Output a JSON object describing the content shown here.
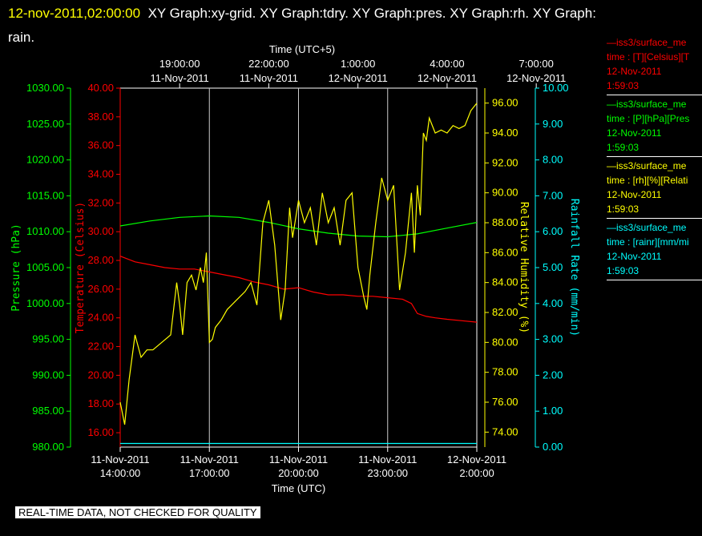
{
  "header": {
    "datetime": "12-nov-2011,02:00:00",
    "graphs": "XY Graph:xy-grid.  XY Graph:tdry.  XY Graph:pres.  XY Graph:rh.  XY Graph:",
    "graphs_cont": "rain."
  },
  "footer": "REAL-TIME DATA, NOT CHECKED FOR QUALITY",
  "legend": [
    {
      "title": "—iss3/surface_me",
      "lines": [
        "time : [T][Celsius][T",
        "12-Nov-2011",
        "1:59:03"
      ],
      "color": "#ff0000"
    },
    {
      "title": "—iss3/surface_me",
      "lines": [
        "time : [P][hPa][Pres",
        "12-Nov-2011",
        "1:59:03"
      ],
      "color": "#00ff00"
    },
    {
      "title": "—iss3/surface_me",
      "lines": [
        "time : [rh][%][Relati",
        "12-Nov-2011",
        "1:59:03"
      ],
      "color": "#ffff00"
    },
    {
      "title": "—iss3/surface_me",
      "lines": [
        "time : [rainr][mm/mi",
        "12-Nov-2011",
        "1:59:03"
      ],
      "color": "#00ffff"
    }
  ],
  "chart_data": {
    "type": "line",
    "x_axis_bottom": {
      "label": "Time (UTC)",
      "ticks": [
        {
          "line1": "11-Nov-2011",
          "line2": "14:00:00"
        },
        {
          "line1": "11-Nov-2011",
          "line2": "17:00:00"
        },
        {
          "line1": "11-Nov-2011",
          "line2": "20:00:00"
        },
        {
          "line1": "11-Nov-2011",
          "line2": "23:00:00"
        },
        {
          "line1": "12-Nov-2011",
          "line2": "2:00:00"
        }
      ],
      "range": [
        "2011-11-11 14:00",
        "2011-11-12 02:00"
      ]
    },
    "x_axis_top": {
      "label": "Time (UTC+5)",
      "ticks": [
        {
          "line1": "19:00:00",
          "line2": "11-Nov-2011"
        },
        {
          "line1": "22:00:00",
          "line2": "11-Nov-2011"
        },
        {
          "line1": "1:00:00",
          "line2": "12-Nov-2011"
        },
        {
          "line1": "4:00:00",
          "line2": "12-Nov-2011"
        },
        {
          "line1": "7:00:00",
          "line2": "12-Nov-2011"
        }
      ]
    },
    "axes": {
      "pressure": {
        "label": "Pressure (hPa)",
        "range": [
          980,
          1030
        ],
        "ticks": [
          "980.00",
          "985.00",
          "990.00",
          "995.00",
          "1000.00",
          "1005.00",
          "1010.00",
          "1015.00",
          "1020.00",
          "1025.00",
          "1030.00"
        ],
        "color": "#00ff00"
      },
      "temperature": {
        "label": "Temperature (Celsius)",
        "range": [
          15,
          40
        ],
        "ticks": [
          "16.00",
          "18.00",
          "20.00",
          "22.00",
          "24.00",
          "26.00",
          "28.00",
          "30.00",
          "32.00",
          "34.00",
          "36.00",
          "38.00",
          "40.00"
        ],
        "color": "#ff0000"
      },
      "humidity": {
        "label": "Relative Humidity (%)",
        "range": [
          73,
          97
        ],
        "ticks": [
          "74.00",
          "76.00",
          "78.00",
          "80.00",
          "82.00",
          "84.00",
          "86.00",
          "88.00",
          "90.00",
          "92.00",
          "94.00",
          "96.00"
        ],
        "color": "#ffff00"
      },
      "rainfall": {
        "label": "Rainfall Rate (mm/min)",
        "range": [
          0,
          10
        ],
        "ticks": [
          "0.00",
          "1.00",
          "2.00",
          "3.00",
          "4.00",
          "5.00",
          "6.00",
          "7.00",
          "8.00",
          "9.00",
          "10.00"
        ],
        "color": "#00ffff"
      }
    },
    "grid": "vertical",
    "series": [
      {
        "name": "T",
        "axis": "temperature",
        "color": "#ff0000",
        "x": [
          0,
          0.5,
          1,
          1.5,
          2,
          2.5,
          3,
          3.5,
          4,
          4.5,
          5,
          5.5,
          6,
          6.5,
          7,
          7.5,
          8,
          8.5,
          9,
          9.5,
          9.8,
          10,
          10.3,
          10.6,
          11,
          11.5,
          12
        ],
        "y": [
          28.3,
          27.9,
          27.7,
          27.5,
          27.4,
          27.4,
          27.2,
          27.0,
          26.8,
          26.5,
          26.3,
          26.0,
          26.1,
          25.8,
          25.6,
          25.6,
          25.5,
          25.5,
          25.4,
          25.3,
          25.0,
          24.3,
          24.1,
          24.0,
          23.9,
          23.8,
          23.7
        ]
      },
      {
        "name": "P",
        "axis": "pressure",
        "color": "#00ff00",
        "x": [
          0,
          1,
          2,
          3,
          4,
          5,
          6,
          7,
          8,
          9,
          10,
          11,
          12
        ],
        "y": [
          1010.8,
          1011.5,
          1012.0,
          1012.2,
          1012.0,
          1011.3,
          1010.4,
          1009.8,
          1009.4,
          1009.3,
          1009.7,
          1010.5,
          1011.3
        ]
      },
      {
        "name": "rh",
        "axis": "humidity",
        "color": "#ffff00",
        "x": [
          0,
          0.15,
          0.3,
          0.5,
          0.7,
          0.9,
          1.1,
          1.4,
          1.7,
          1.9,
          2.0,
          2.1,
          2.25,
          2.4,
          2.55,
          2.7,
          2.8,
          2.9,
          3.0,
          3.1,
          3.2,
          3.4,
          3.6,
          3.9,
          4.2,
          4.4,
          4.6,
          4.8,
          5.0,
          5.2,
          5.4,
          5.55,
          5.7,
          5.8,
          6.0,
          6.2,
          6.4,
          6.6,
          6.8,
          7.0,
          7.2,
          7.4,
          7.6,
          7.8,
          8.0,
          8.2,
          8.3,
          8.4,
          8.6,
          8.8,
          9.0,
          9.2,
          9.4,
          9.6,
          9.8,
          9.9,
          10.0,
          10.1,
          10.2,
          10.3,
          10.4,
          10.6,
          10.8,
          11.0,
          11.2,
          11.4,
          11.6,
          11.8,
          12.0
        ],
        "y": [
          76.0,
          74.5,
          77.5,
          80.5,
          79.0,
          79.5,
          79.5,
          80.0,
          80.5,
          84.0,
          82.5,
          80.5,
          84.0,
          84.5,
          83.5,
          85.0,
          84.0,
          86.0,
          80.0,
          80.2,
          81.0,
          81.5,
          82.2,
          82.8,
          83.4,
          84.0,
          82.5,
          88.0,
          89.5,
          86.5,
          81.5,
          83.5,
          89.0,
          87.0,
          89.5,
          88.0,
          89.0,
          86.5,
          90.0,
          88.0,
          89.0,
          86.5,
          89.5,
          90.0,
          85.0,
          83.0,
          82.2,
          84.5,
          88.0,
          91.0,
          89.5,
          90.5,
          83.5,
          86.0,
          90.0,
          86.0,
          90.5,
          88.5,
          94.0,
          93.5,
          95.0,
          94.0,
          94.2,
          94.0,
          94.5,
          94.3,
          94.5,
          95.5,
          96.0
        ]
      },
      {
        "name": "rainr",
        "axis": "rainfall",
        "color": "#00ffff",
        "x": [
          0,
          12
        ],
        "y": [
          0.1,
          0.1
        ]
      }
    ]
  }
}
